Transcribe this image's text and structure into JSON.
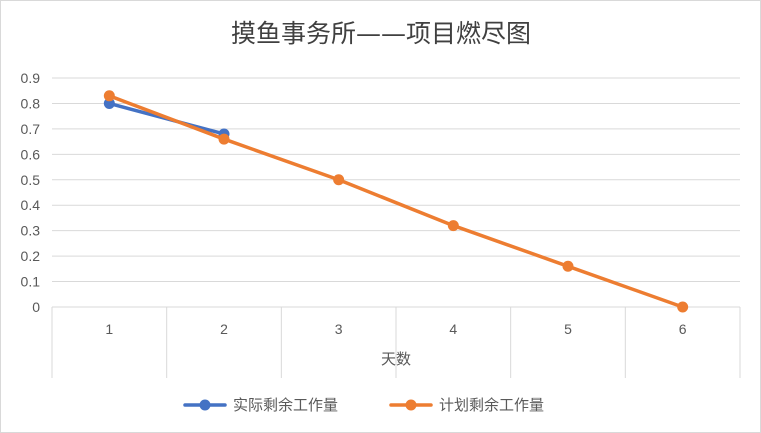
{
  "chart_data": {
    "type": "line",
    "title": "摸鱼事务所——项目燃尽图",
    "xlabel": "天数",
    "ylabel": "",
    "x": [
      1,
      2,
      3,
      4,
      5,
      6
    ],
    "ylim": [
      0,
      0.9
    ],
    "yticks": [
      "0",
      "0.1",
      "0.2",
      "0.3",
      "0.4",
      "0.5",
      "0.6",
      "0.7",
      "0.8",
      "0.9"
    ],
    "grid": true,
    "legend_position": "bottom",
    "series": [
      {
        "name": "实际剩余工作量",
        "color": "#4472c4",
        "x": [
          1,
          2
        ],
        "values": [
          0.8,
          0.68
        ]
      },
      {
        "name": "计划剩余工作量",
        "color": "#ed7d31",
        "x": [
          1,
          2,
          3,
          4,
          5,
          6
        ],
        "values": [
          0.83,
          0.66,
          0.5,
          0.32,
          0.16,
          0
        ]
      }
    ]
  }
}
